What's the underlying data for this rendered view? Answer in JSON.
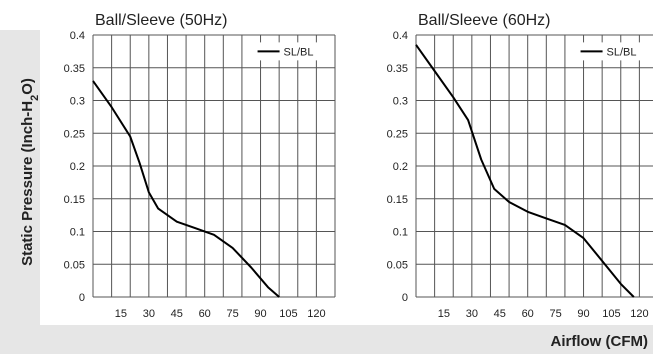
{
  "y_axis_label": {
    "main": "Static Pressure (Inch-H",
    "sub": "2",
    "tail": "O)"
  },
  "x_axis_label": "Airflow (CFM)",
  "colors": {
    "band": "#e6e6e6",
    "grid": "#555555",
    "line": "#000000"
  },
  "chart_data": [
    {
      "type": "line",
      "title": "Ball/Sleeve (50Hz)",
      "xlim": [
        0,
        130
      ],
      "ylim": [
        0,
        0.4
      ],
      "x_ticks": [
        "15",
        "30",
        "45",
        "60",
        "75",
        "90",
        "105",
        "120"
      ],
      "y_ticks": [
        "0.4",
        "0.35",
        "0.3",
        "0.25",
        "0.2",
        "0.15",
        "0.1",
        "0.05",
        "0"
      ],
      "grid": true,
      "legend_position": "top-right",
      "series": [
        {
          "name": "SL/BL",
          "x": [
            0,
            10,
            20,
            25,
            30,
            35,
            45,
            55,
            65,
            75,
            85,
            94,
            100
          ],
          "y": [
            0.33,
            0.29,
            0.245,
            0.205,
            0.16,
            0.135,
            0.115,
            0.105,
            0.095,
            0.075,
            0.045,
            0.015,
            0
          ]
        }
      ]
    },
    {
      "type": "line",
      "title": "Ball/Sleeve (60Hz)",
      "xlim": [
        0,
        130
      ],
      "ylim": [
        0,
        0.4
      ],
      "x_ticks": [
        "15",
        "30",
        "45",
        "60",
        "75",
        "90",
        "105",
        "120"
      ],
      "y_ticks": [
        "0.4",
        "0.35",
        "0.3",
        "0.25",
        "0.2",
        "0.15",
        "0.1",
        "0.05",
        "0"
      ],
      "grid": true,
      "legend_position": "top-right",
      "series": [
        {
          "name": "SL/BL",
          "x": [
            0,
            10,
            20,
            28,
            35,
            42,
            50,
            60,
            70,
            80,
            90,
            100,
            110,
            117
          ],
          "y": [
            0.385,
            0.345,
            0.305,
            0.27,
            0.21,
            0.165,
            0.145,
            0.13,
            0.12,
            0.11,
            0.09,
            0.055,
            0.02,
            0
          ]
        }
      ]
    }
  ]
}
